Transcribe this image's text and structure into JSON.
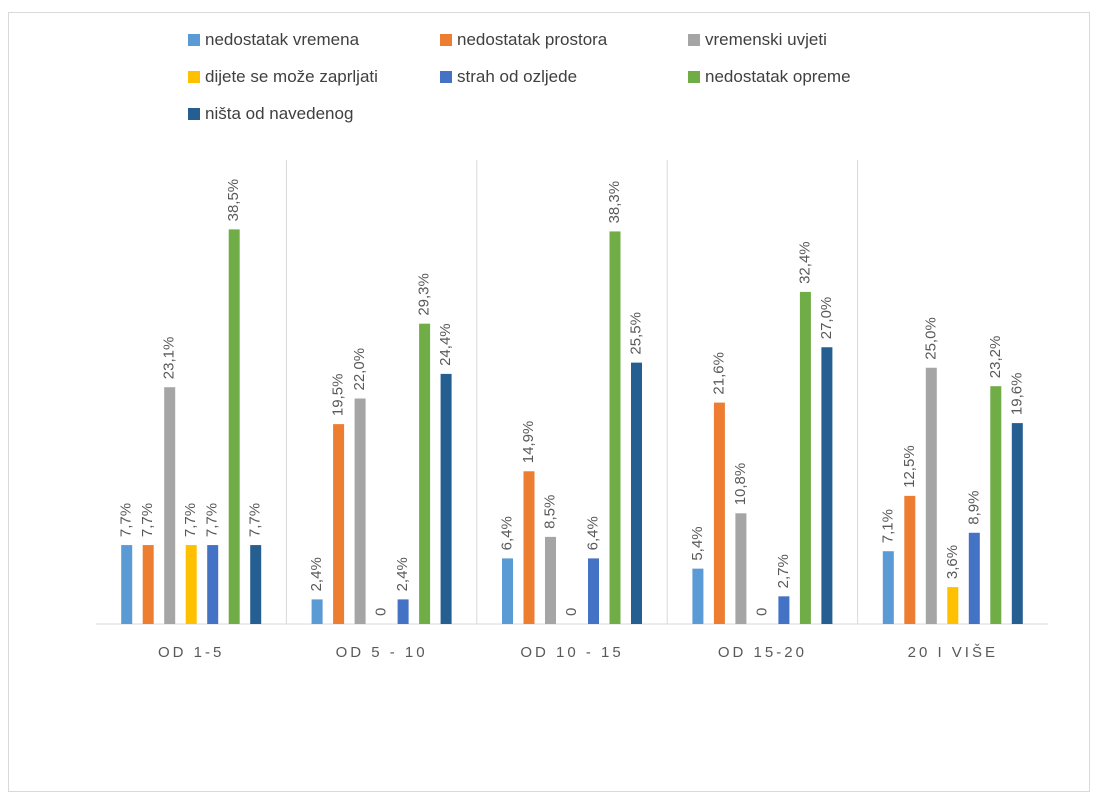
{
  "chart_data": {
    "type": "bar",
    "categories": [
      "OD 1-5",
      "OD 5 - 10",
      "OD 10 - 15",
      "OD 15-20",
      "20 I VIŠE"
    ],
    "series": [
      {
        "name": "nedostatak vremena",
        "color": "#5b9bd5",
        "values": [
          7.7,
          2.4,
          6.4,
          5.4,
          7.1
        ],
        "labels": [
          "7,7%",
          "2,4%",
          "6,4%",
          "5,4%",
          "7,1%"
        ]
      },
      {
        "name": "nedostatak prostora",
        "color": "#ed7d31",
        "values": [
          7.7,
          19.5,
          14.9,
          21.6,
          12.5
        ],
        "labels": [
          "7,7%",
          "19,5%",
          "14,9%",
          "21,6%",
          "12,5%"
        ]
      },
      {
        "name": "vremenski uvjeti",
        "color": "#a5a5a5",
        "values": [
          23.1,
          22.0,
          8.5,
          10.8,
          25.0
        ],
        "labels": [
          "23,1%",
          "22,0%",
          "8,5%",
          "10,8%",
          "25,0%"
        ]
      },
      {
        "name": "dijete se može zaprljati",
        "color": "#ffc000",
        "values": [
          7.7,
          0,
          0,
          0,
          3.6
        ],
        "labels": [
          "7,7%",
          "0",
          "0",
          "0",
          "3,6%"
        ]
      },
      {
        "name": "strah od ozljede",
        "color": "#4472c4",
        "values": [
          7.7,
          2.4,
          6.4,
          2.7,
          8.9
        ],
        "labels": [
          "7,7%",
          "2,4%",
          "6,4%",
          "2,7%",
          "8,9%"
        ]
      },
      {
        "name": "nedostatak opreme",
        "color": "#70ad47",
        "values": [
          38.5,
          29.3,
          38.3,
          32.4,
          23.2
        ],
        "labels": [
          "38,5%",
          "29,3%",
          "38,3%",
          "32,4%",
          "23,2%"
        ]
      },
      {
        "name": "ništa od navedenog",
        "color": "#255e91",
        "values": [
          7.7,
          24.4,
          25.5,
          27.0,
          19.6
        ],
        "labels": [
          "7,7%",
          "24,4%",
          "25,5%",
          "27,0%",
          "19,6%"
        ]
      }
    ],
    "ylim": [
      0,
      40
    ],
    "value_unit": "%",
    "grid": false,
    "legend_position": "top"
  }
}
